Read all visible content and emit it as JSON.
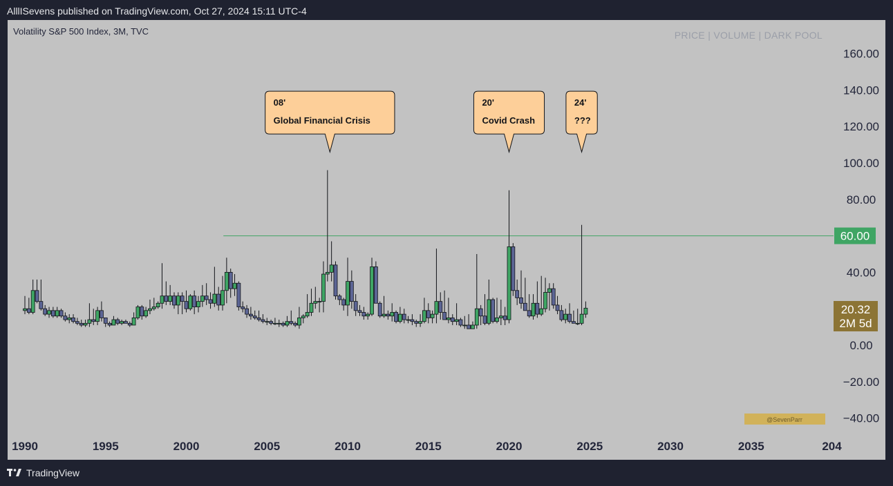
{
  "header": {
    "publisher_line": "AlllISevens published on TradingView.com, Oct 27, 2024 15:11 UTC-4"
  },
  "chart_header": {
    "instrument": "Volatility S&P 500 Index, 3M, TVC",
    "tabs": "PRICE | VOLUME | DARK POOL"
  },
  "footer": {
    "brand": "TradingView"
  },
  "watermark": "@SevenParr",
  "price_labels": {
    "level_line": "60.00",
    "last_price": "20.32",
    "countdown": "2M 5d"
  },
  "annotations": [
    {
      "line1": "08'",
      "line2": "Global Financial Crisis",
      "x": 2008.9,
      "y": 106
    },
    {
      "line1": "20'",
      "line2": "Covid Crash",
      "x": 2020.0,
      "y": 106
    },
    {
      "line1": "24'",
      "line2": "???",
      "x": 2024.5,
      "y": 106
    }
  ],
  "colors": {
    "up": "#3fa564",
    "down": "#5c6595",
    "level_line": "#3fa564",
    "last_price_bg": "#8c7435",
    "callout_bg": "#fdcf99"
  },
  "chart_data": {
    "type": "candlestick",
    "title": "Volatility S&P 500 Index, 3M, TVC",
    "x_axis": {
      "type": "date",
      "ticks": [
        "1990",
        "1995",
        "2000",
        "2005",
        "2010",
        "2015",
        "2020",
        "2025",
        "2030",
        "2035",
        "204"
      ],
      "range": [
        1989.6,
        2040.2
      ]
    },
    "y_axis": {
      "ticks": [
        "160.00",
        "140.00",
        "120.00",
        "100.00",
        "80.00",
        "60.00",
        "40.00",
        "0.00",
        "−20.00",
        "−40.00"
      ],
      "range": [
        -48,
        175
      ],
      "position": "right"
    },
    "horizontal_line": {
      "value": 60,
      "x_start": 2002.3
    },
    "last_price": 20.32,
    "candles": [
      {
        "t": 1990.0,
        "o": 19,
        "h": 27,
        "l": 17,
        "c": 20
      },
      {
        "t": 1990.25,
        "o": 20,
        "h": 26,
        "l": 17,
        "c": 18
      },
      {
        "t": 1990.5,
        "o": 18,
        "h": 36,
        "l": 17,
        "c": 30
      },
      {
        "t": 1990.75,
        "o": 30,
        "h": 36,
        "l": 23,
        "c": 24
      },
      {
        "t": 1991.0,
        "o": 24,
        "h": 36,
        "l": 19,
        "c": 20
      },
      {
        "t": 1991.25,
        "o": 20,
        "h": 22,
        "l": 16,
        "c": 17
      },
      {
        "t": 1991.5,
        "o": 17,
        "h": 21,
        "l": 15,
        "c": 19
      },
      {
        "t": 1991.75,
        "o": 19,
        "h": 21,
        "l": 15,
        "c": 16
      },
      {
        "t": 1992.0,
        "o": 16,
        "h": 21,
        "l": 15,
        "c": 19
      },
      {
        "t": 1992.25,
        "o": 19,
        "h": 20,
        "l": 15,
        "c": 16
      },
      {
        "t": 1992.5,
        "o": 16,
        "h": 18,
        "l": 13,
        "c": 14
      },
      {
        "t": 1992.75,
        "o": 14,
        "h": 17,
        "l": 12,
        "c": 15
      },
      {
        "t": 1993.0,
        "o": 15,
        "h": 17,
        "l": 12,
        "c": 13
      },
      {
        "t": 1993.25,
        "o": 13,
        "h": 15,
        "l": 11,
        "c": 12
      },
      {
        "t": 1993.5,
        "o": 12,
        "h": 14,
        "l": 10,
        "c": 11
      },
      {
        "t": 1993.75,
        "o": 11,
        "h": 14,
        "l": 10,
        "c": 12
      },
      {
        "t": 1994.0,
        "o": 12,
        "h": 23,
        "l": 10,
        "c": 14
      },
      {
        "t": 1994.25,
        "o": 14,
        "h": 20,
        "l": 11,
        "c": 13
      },
      {
        "t": 1994.5,
        "o": 13,
        "h": 21,
        "l": 11,
        "c": 19
      },
      {
        "t": 1994.75,
        "o": 19,
        "h": 24,
        "l": 13,
        "c": 15
      },
      {
        "t": 1995.0,
        "o": 15,
        "h": 15,
        "l": 10,
        "c": 12
      },
      {
        "t": 1995.25,
        "o": 12,
        "h": 13,
        "l": 10,
        "c": 11
      },
      {
        "t": 1995.5,
        "o": 11,
        "h": 16,
        "l": 11,
        "c": 14
      },
      {
        "t": 1995.75,
        "o": 14,
        "h": 15,
        "l": 11,
        "c": 12
      },
      {
        "t": 1996.0,
        "o": 12,
        "h": 14,
        "l": 11,
        "c": 13
      },
      {
        "t": 1996.25,
        "o": 13,
        "h": 14,
        "l": 12,
        "c": 12
      },
      {
        "t": 1996.5,
        "o": 12,
        "h": 13,
        "l": 10,
        "c": 11
      },
      {
        "t": 1996.75,
        "o": 11,
        "h": 18,
        "l": 11,
        "c": 15
      },
      {
        "t": 1997.0,
        "o": 15,
        "h": 22,
        "l": 14,
        "c": 21
      },
      {
        "t": 1997.25,
        "o": 21,
        "h": 22,
        "l": 14,
        "c": 16
      },
      {
        "t": 1997.5,
        "o": 16,
        "h": 21,
        "l": 15,
        "c": 19
      },
      {
        "t": 1997.75,
        "o": 19,
        "h": 25,
        "l": 17,
        "c": 20
      },
      {
        "t": 1998.0,
        "o": 20,
        "h": 26,
        "l": 19,
        "c": 21
      },
      {
        "t": 1998.25,
        "o": 21,
        "h": 24,
        "l": 20,
        "c": 23
      },
      {
        "t": 1998.5,
        "o": 23,
        "h": 45,
        "l": 20,
        "c": 27
      },
      {
        "t": 1998.75,
        "o": 27,
        "h": 35,
        "l": 22,
        "c": 24
      },
      {
        "t": 1999.0,
        "o": 24,
        "h": 33,
        "l": 22,
        "c": 27
      },
      {
        "t": 1999.25,
        "o": 27,
        "h": 29,
        "l": 20,
        "c": 22
      },
      {
        "t": 1999.5,
        "o": 22,
        "h": 29,
        "l": 17,
        "c": 27
      },
      {
        "t": 1999.75,
        "o": 27,
        "h": 29,
        "l": 17,
        "c": 24
      },
      {
        "t": 2000.0,
        "o": 24,
        "h": 30,
        "l": 18,
        "c": 20
      },
      {
        "t": 2000.25,
        "o": 20,
        "h": 28,
        "l": 19,
        "c": 27
      },
      {
        "t": 2000.5,
        "o": 27,
        "h": 30,
        "l": 17,
        "c": 21
      },
      {
        "t": 2000.75,
        "o": 21,
        "h": 27,
        "l": 18,
        "c": 24
      },
      {
        "t": 2001.0,
        "o": 24,
        "h": 33,
        "l": 21,
        "c": 27
      },
      {
        "t": 2001.25,
        "o": 27,
        "h": 34,
        "l": 22,
        "c": 25
      },
      {
        "t": 2001.5,
        "o": 25,
        "h": 29,
        "l": 20,
        "c": 23
      },
      {
        "t": 2001.75,
        "o": 23,
        "h": 43,
        "l": 21,
        "c": 28
      },
      {
        "t": 2002.0,
        "o": 28,
        "h": 32,
        "l": 19,
        "c": 22
      },
      {
        "t": 2002.25,
        "o": 22,
        "h": 38,
        "l": 19,
        "c": 30
      },
      {
        "t": 2002.5,
        "o": 30,
        "h": 48,
        "l": 23,
        "c": 40
      },
      {
        "t": 2002.75,
        "o": 40,
        "h": 42,
        "l": 26,
        "c": 31
      },
      {
        "t": 2003.0,
        "o": 31,
        "h": 39,
        "l": 27,
        "c": 34
      },
      {
        "t": 2003.25,
        "o": 34,
        "h": 35,
        "l": 19,
        "c": 21
      },
      {
        "t": 2003.5,
        "o": 21,
        "h": 24,
        "l": 18,
        "c": 20
      },
      {
        "t": 2003.75,
        "o": 20,
        "h": 22,
        "l": 15,
        "c": 17
      },
      {
        "t": 2004.0,
        "o": 17,
        "h": 21,
        "l": 14,
        "c": 16
      },
      {
        "t": 2004.25,
        "o": 16,
        "h": 19,
        "l": 14,
        "c": 15
      },
      {
        "t": 2004.5,
        "o": 15,
        "h": 19,
        "l": 13,
        "c": 14
      },
      {
        "t": 2004.75,
        "o": 14,
        "h": 17,
        "l": 12,
        "c": 13
      },
      {
        "t": 2005.0,
        "o": 13,
        "h": 15,
        "l": 11,
        "c": 13
      },
      {
        "t": 2005.25,
        "o": 13,
        "h": 14,
        "l": 11,
        "c": 12
      },
      {
        "t": 2005.5,
        "o": 12,
        "h": 15,
        "l": 11,
        "c": 12
      },
      {
        "t": 2005.75,
        "o": 12,
        "h": 14,
        "l": 10,
        "c": 12
      },
      {
        "t": 2006.0,
        "o": 12,
        "h": 13,
        "l": 10,
        "c": 11
      },
      {
        "t": 2006.25,
        "o": 11,
        "h": 16,
        "l": 10,
        "c": 13
      },
      {
        "t": 2006.5,
        "o": 13,
        "h": 19,
        "l": 11,
        "c": 12
      },
      {
        "t": 2006.75,
        "o": 12,
        "h": 13,
        "l": 10,
        "c": 11
      },
      {
        "t": 2007.0,
        "o": 11,
        "h": 21,
        "l": 9,
        "c": 15
      },
      {
        "t": 2007.25,
        "o": 15,
        "h": 17,
        "l": 12,
        "c": 16
      },
      {
        "t": 2007.5,
        "o": 16,
        "h": 28,
        "l": 15,
        "c": 18
      },
      {
        "t": 2007.75,
        "o": 18,
        "h": 31,
        "l": 16,
        "c": 23
      },
      {
        "t": 2008.0,
        "o": 23,
        "h": 32,
        "l": 20,
        "c": 24
      },
      {
        "t": 2008.25,
        "o": 24,
        "h": 26,
        "l": 18,
        "c": 24
      },
      {
        "t": 2008.5,
        "o": 24,
        "h": 46,
        "l": 18,
        "c": 39
      },
      {
        "t": 2008.75,
        "o": 39,
        "h": 96,
        "l": 35,
        "c": 40
      },
      {
        "t": 2009.0,
        "o": 40,
        "h": 57,
        "l": 35,
        "c": 44
      },
      {
        "t": 2009.25,
        "o": 44,
        "h": 46,
        "l": 25,
        "c": 27
      },
      {
        "t": 2009.5,
        "o": 27,
        "h": 28,
        "l": 22,
        "c": 25
      },
      {
        "t": 2009.75,
        "o": 25,
        "h": 26,
        "l": 19,
        "c": 22
      },
      {
        "t": 2010.0,
        "o": 22,
        "h": 48,
        "l": 16,
        "c": 35
      },
      {
        "t": 2010.25,
        "o": 35,
        "h": 41,
        "l": 20,
        "c": 24
      },
      {
        "t": 2010.5,
        "o": 24,
        "h": 28,
        "l": 16,
        "c": 19
      },
      {
        "t": 2010.75,
        "o": 19,
        "h": 22,
        "l": 16,
        "c": 18
      },
      {
        "t": 2011.0,
        "o": 18,
        "h": 21,
        "l": 14,
        "c": 16
      },
      {
        "t": 2011.25,
        "o": 16,
        "h": 18,
        "l": 14,
        "c": 17
      },
      {
        "t": 2011.5,
        "o": 17,
        "h": 48,
        "l": 16,
        "c": 43
      },
      {
        "t": 2011.75,
        "o": 43,
        "h": 46,
        "l": 23,
        "c": 23
      },
      {
        "t": 2012.0,
        "o": 23,
        "h": 24,
        "l": 15,
        "c": 16
      },
      {
        "t": 2012.25,
        "o": 16,
        "h": 27,
        "l": 15,
        "c": 17
      },
      {
        "t": 2012.5,
        "o": 17,
        "h": 19,
        "l": 14,
        "c": 16
      },
      {
        "t": 2012.75,
        "o": 16,
        "h": 23,
        "l": 13,
        "c": 18
      },
      {
        "t": 2013.0,
        "o": 18,
        "h": 19,
        "l": 12,
        "c": 13
      },
      {
        "t": 2013.25,
        "o": 13,
        "h": 21,
        "l": 12,
        "c": 17
      },
      {
        "t": 2013.5,
        "o": 17,
        "h": 20,
        "l": 12,
        "c": 14
      },
      {
        "t": 2013.75,
        "o": 14,
        "h": 16,
        "l": 12,
        "c": 14
      },
      {
        "t": 2014.0,
        "o": 14,
        "h": 17,
        "l": 11,
        "c": 13
      },
      {
        "t": 2014.25,
        "o": 13,
        "h": 14,
        "l": 10,
        "c": 12
      },
      {
        "t": 2014.5,
        "o": 12,
        "h": 17,
        "l": 10,
        "c": 13
      },
      {
        "t": 2014.75,
        "o": 13,
        "h": 26,
        "l": 12,
        "c": 19
      },
      {
        "t": 2015.0,
        "o": 19,
        "h": 23,
        "l": 12,
        "c": 15
      },
      {
        "t": 2015.25,
        "o": 15,
        "h": 19,
        "l": 12,
        "c": 17
      },
      {
        "t": 2015.5,
        "o": 17,
        "h": 53,
        "l": 12,
        "c": 24
      },
      {
        "t": 2015.75,
        "o": 24,
        "h": 29,
        "l": 14,
        "c": 18
      },
      {
        "t": 2016.0,
        "o": 18,
        "h": 30,
        "l": 14,
        "c": 14
      },
      {
        "t": 2016.25,
        "o": 14,
        "h": 26,
        "l": 12,
        "c": 15
      },
      {
        "t": 2016.5,
        "o": 15,
        "h": 17,
        "l": 11,
        "c": 13
      },
      {
        "t": 2016.75,
        "o": 13,
        "h": 23,
        "l": 11,
        "c": 14
      },
      {
        "t": 2017.0,
        "o": 14,
        "h": 15,
        "l": 10,
        "c": 11
      },
      {
        "t": 2017.25,
        "o": 11,
        "h": 16,
        "l": 9,
        "c": 11
      },
      {
        "t": 2017.5,
        "o": 11,
        "h": 17,
        "l": 9,
        "c": 9
      },
      {
        "t": 2017.75,
        "o": 9,
        "h": 13,
        "l": 9,
        "c": 11
      },
      {
        "t": 2018.0,
        "o": 11,
        "h": 50,
        "l": 9,
        "c": 20
      },
      {
        "t": 2018.25,
        "o": 20,
        "h": 22,
        "l": 11,
        "c": 16
      },
      {
        "t": 2018.5,
        "o": 16,
        "h": 28,
        "l": 11,
        "c": 12
      },
      {
        "t": 2018.75,
        "o": 12,
        "h": 36,
        "l": 11,
        "c": 25
      },
      {
        "t": 2019.0,
        "o": 25,
        "h": 26,
        "l": 12,
        "c": 13
      },
      {
        "t": 2019.25,
        "o": 13,
        "h": 26,
        "l": 12,
        "c": 15
      },
      {
        "t": 2019.5,
        "o": 15,
        "h": 25,
        "l": 11,
        "c": 16
      },
      {
        "t": 2019.75,
        "o": 16,
        "h": 21,
        "l": 11,
        "c": 14
      },
      {
        "t": 2020.0,
        "o": 14,
        "h": 85,
        "l": 12,
        "c": 54
      },
      {
        "t": 2020.25,
        "o": 54,
        "h": 56,
        "l": 27,
        "c": 30
      },
      {
        "t": 2020.5,
        "o": 30,
        "h": 36,
        "l": 22,
        "c": 26
      },
      {
        "t": 2020.75,
        "o": 26,
        "h": 41,
        "l": 20,
        "c": 23
      },
      {
        "t": 2021.0,
        "o": 23,
        "h": 37,
        "l": 19,
        "c": 19
      },
      {
        "t": 2021.25,
        "o": 19,
        "h": 28,
        "l": 15,
        "c": 16
      },
      {
        "t": 2021.5,
        "o": 16,
        "h": 28,
        "l": 14,
        "c": 23
      },
      {
        "t": 2021.75,
        "o": 23,
        "h": 35,
        "l": 15,
        "c": 17
      },
      {
        "t": 2022.0,
        "o": 17,
        "h": 38,
        "l": 16,
        "c": 20
      },
      {
        "t": 2022.25,
        "o": 20,
        "h": 37,
        "l": 18,
        "c": 29
      },
      {
        "t": 2022.5,
        "o": 29,
        "h": 34,
        "l": 19,
        "c": 31
      },
      {
        "t": 2022.75,
        "o": 31,
        "h": 34,
        "l": 20,
        "c": 22
      },
      {
        "t": 2023.0,
        "o": 22,
        "h": 27,
        "l": 17,
        "c": 19
      },
      {
        "t": 2023.25,
        "o": 19,
        "h": 22,
        "l": 13,
        "c": 14
      },
      {
        "t": 2023.5,
        "o": 14,
        "h": 20,
        "l": 12,
        "c": 17
      },
      {
        "t": 2023.75,
        "o": 17,
        "h": 23,
        "l": 12,
        "c": 13
      },
      {
        "t": 2024.0,
        "o": 13,
        "h": 19,
        "l": 12,
        "c": 12
      },
      {
        "t": 2024.25,
        "o": 12,
        "h": 20,
        "l": 11,
        "c": 12
      },
      {
        "t": 2024.5,
        "o": 12,
        "h": 66,
        "l": 11,
        "c": 17
      },
      {
        "t": 2024.75,
        "o": 17,
        "h": 24,
        "l": 15,
        "c": 20.32
      }
    ]
  }
}
